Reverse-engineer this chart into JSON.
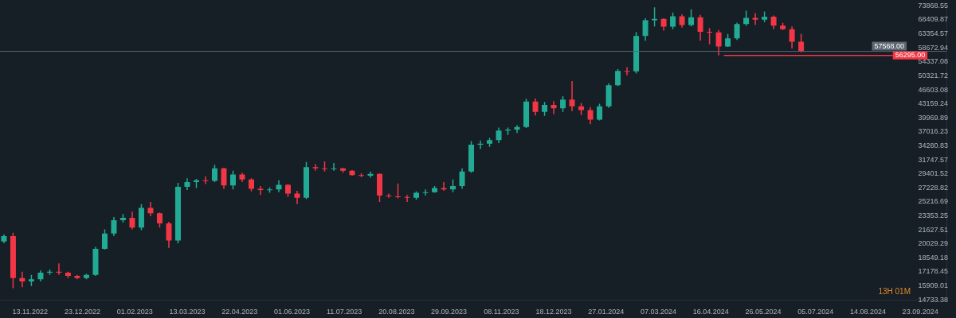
{
  "chart_data": {
    "type": "candlestick",
    "log": true,
    "xlim": [
      "2022-10-21",
      "2024-10-13"
    ],
    "xticks": [
      {
        "value": "2022-11-13",
        "label": "13.11.2022"
      },
      {
        "value": "2022-12-23",
        "label": "23.12.2022"
      },
      {
        "value": "2023-02-01",
        "label": "01.02.2023"
      },
      {
        "value": "2023-03-13",
        "label": "13.03.2023"
      },
      {
        "value": "2023-04-22",
        "label": "22.04.2023"
      },
      {
        "value": "2023-06-01",
        "label": "01.06.2023"
      },
      {
        "value": "2023-07-11",
        "label": "11.07.2023"
      },
      {
        "value": "2023-08-20",
        "label": "20.08.2023"
      },
      {
        "value": "2023-09-29",
        "label": "29.09.2023"
      },
      {
        "value": "2023-11-08",
        "label": "08.11.2023"
      },
      {
        "value": "2023-12-18",
        "label": "18.12.2023"
      },
      {
        "value": "2024-01-27",
        "label": "27.01.2024"
      },
      {
        "value": "2024-03-07",
        "label": "07.03.2024"
      },
      {
        "value": "2024-04-16",
        "label": "16.04.2024"
      },
      {
        "value": "2024-05-26",
        "label": "26.05.2024"
      },
      {
        "value": "2024-07-05",
        "label": "05.07.2024"
      },
      {
        "value": "2024-08-14",
        "label": "14.08.2024"
      },
      {
        "value": "2024-09-23",
        "label": "23.09.2024"
      }
    ],
    "ylim": [
      14733.38,
      73868.55
    ],
    "yticks": [
      14733.38,
      15909.01,
      17178.45,
      18549.18,
      20029.29,
      21627.51,
      23353.25,
      25216.69,
      27228.82,
      29401.52,
      31747.57,
      34280.83,
      37016.23,
      39969.89,
      43159.24,
      46603.08,
      50321.72,
      54337.08,
      58672.94,
      63354.57,
      68409.87,
      73868.55
    ],
    "x": [
      "2022-10-24",
      "2022-10-31",
      "2022-11-07",
      "2022-11-14",
      "2022-11-21",
      "2022-11-28",
      "2022-12-05",
      "2022-12-12",
      "2022-12-19",
      "2022-12-26",
      "2023-01-02",
      "2023-01-09",
      "2023-01-16",
      "2023-01-23",
      "2023-01-30",
      "2023-02-06",
      "2023-02-13",
      "2023-02-20",
      "2023-02-27",
      "2023-03-06",
      "2023-03-13",
      "2023-03-20",
      "2023-03-27",
      "2023-04-03",
      "2023-04-10",
      "2023-04-17",
      "2023-04-24",
      "2023-05-01",
      "2023-05-08",
      "2023-05-15",
      "2023-05-22",
      "2023-05-29",
      "2023-06-05",
      "2023-06-12",
      "2023-06-19",
      "2023-06-26",
      "2023-07-03",
      "2023-07-10",
      "2023-07-17",
      "2023-07-24",
      "2023-07-31",
      "2023-08-07",
      "2023-08-14",
      "2023-08-21",
      "2023-08-28",
      "2023-09-04",
      "2023-09-11",
      "2023-09-18",
      "2023-09-25",
      "2023-10-02",
      "2023-10-09",
      "2023-10-16",
      "2023-10-23",
      "2023-10-30",
      "2023-11-06",
      "2023-11-13",
      "2023-11-20",
      "2023-11-27",
      "2023-12-04",
      "2023-12-11",
      "2023-12-18",
      "2023-12-25",
      "2024-01-01",
      "2024-01-08",
      "2024-01-15",
      "2024-01-22",
      "2024-01-29",
      "2024-02-05",
      "2024-02-12",
      "2024-02-19",
      "2024-02-26",
      "2024-03-04",
      "2024-03-11",
      "2024-03-18",
      "2024-03-25",
      "2024-04-01",
      "2024-04-08",
      "2024-04-15",
      "2024-04-22",
      "2024-04-29",
      "2024-05-06",
      "2024-05-13",
      "2024-05-20",
      "2024-05-27",
      "2024-06-03",
      "2024-06-10",
      "2024-06-17",
      "2024-06-24"
    ],
    "ohlc": [
      [
        20300,
        21100,
        20100,
        20900
      ],
      [
        20900,
        21300,
        15700,
        16600
      ],
      [
        16600,
        17200,
        15800,
        16300
      ],
      [
        16300,
        16900,
        15900,
        16500
      ],
      [
        16500,
        17300,
        16300,
        17100
      ],
      [
        17100,
        17400,
        16900,
        17200
      ],
      [
        17200,
        18000,
        16900,
        17100
      ],
      [
        17100,
        17200,
        16600,
        16800
      ],
      [
        16800,
        16900,
        16500,
        16600
      ],
      [
        16600,
        17000,
        16500,
        16900
      ],
      [
        16900,
        19700,
        16800,
        19500
      ],
      [
        19500,
        21700,
        19400,
        21200
      ],
      [
        21200,
        23200,
        20900,
        22800
      ],
      [
        22800,
        23600,
        22500,
        23100
      ],
      [
        23100,
        23900,
        21700,
        21900
      ],
      [
        21900,
        24900,
        21600,
        24400
      ],
      [
        24400,
        25200,
        23300,
        23700
      ],
      [
        23700,
        23800,
        21900,
        22400
      ],
      [
        22400,
        22600,
        19600,
        20400
      ],
      [
        20400,
        28000,
        20100,
        27400
      ],
      [
        27400,
        28700,
        26900,
        28100
      ],
      [
        28100,
        28600,
        27200,
        28400
      ],
      [
        28400,
        29000,
        27800,
        28300
      ],
      [
        28300,
        30900,
        28100,
        30300
      ],
      [
        30300,
        30400,
        27100,
        27600
      ],
      [
        27600,
        29900,
        27000,
        29300
      ],
      [
        29300,
        29600,
        28100,
        28500
      ],
      [
        28500,
        28700,
        26700,
        27100
      ],
      [
        27100,
        27500,
        26200,
        26900
      ],
      [
        26900,
        27300,
        26500,
        27000
      ],
      [
        27000,
        28400,
        26600,
        27700
      ],
      [
        27700,
        27800,
        25900,
        26400
      ],
      [
        26400,
        26800,
        24900,
        25800
      ],
      [
        25800,
        31400,
        25600,
        30500
      ],
      [
        30500,
        31000,
        29900,
        30300
      ],
      [
        30300,
        31500,
        29800,
        30200
      ],
      [
        30200,
        31200,
        29900,
        30300
      ],
      [
        30300,
        30400,
        29600,
        29900
      ],
      [
        29900,
        30000,
        29100,
        29200
      ],
      [
        29200,
        29500,
        28900,
        29100
      ],
      [
        29100,
        29800,
        28800,
        29400
      ],
      [
        29400,
        29500,
        25200,
        26100
      ],
      [
        26100,
        26400,
        25800,
        26000
      ],
      [
        26000,
        27900,
        25700,
        25900
      ],
      [
        25900,
        26200,
        25200,
        25800
      ],
      [
        25800,
        26700,
        25500,
        26500
      ],
      [
        26500,
        27000,
        26100,
        26600
      ],
      [
        26600,
        27500,
        26500,
        27200
      ],
      [
        27200,
        28100,
        26800,
        27000
      ],
      [
        27000,
        28500,
        26600,
        27500
      ],
      [
        27500,
        30300,
        27100,
        29800
      ],
      [
        29800,
        35200,
        29600,
        34500
      ],
      [
        34500,
        35300,
        33700,
        34700
      ],
      [
        34700,
        35800,
        34100,
        35400
      ],
      [
        35400,
        37900,
        34800,
        37300
      ],
      [
        37300,
        37900,
        36400,
        37500
      ],
      [
        37500,
        38400,
        36800,
        38000
      ],
      [
        38000,
        44400,
        37800,
        43700
      ],
      [
        43700,
        44500,
        40500,
        41300
      ],
      [
        41300,
        43600,
        40400,
        42900
      ],
      [
        42900,
        43800,
        40800,
        42100
      ],
      [
        42100,
        45000,
        41300,
        44200
      ],
      [
        44200,
        48900,
        41500,
        42600
      ],
      [
        42600,
        43400,
        40600,
        41700
      ],
      [
        41700,
        42400,
        38600,
        39600
      ],
      [
        39600,
        43200,
        39400,
        42600
      ],
      [
        42600,
        48300,
        42200,
        47800
      ],
      [
        47800,
        52200,
        47600,
        51700
      ],
      [
        51700,
        52800,
        50500,
        51600
      ],
      [
        51600,
        64000,
        51000,
        62600
      ],
      [
        62600,
        69000,
        61000,
        68300
      ],
      [
        68300,
        73300,
        66000,
        68800
      ],
      [
        68800,
        69000,
        64500,
        65900
      ],
      [
        65900,
        71200,
        65000,
        69800
      ],
      [
        69800,
        70500,
        65600,
        66500
      ],
      [
        66500,
        72500,
        66000,
        69400
      ],
      [
        69400,
        70300,
        61000,
        64100
      ],
      [
        64100,
        65400,
        59800,
        63900
      ],
      [
        63900,
        64700,
        56300,
        59100
      ],
      [
        59100,
        63300,
        59000,
        61800
      ],
      [
        61800,
        67400,
        61300,
        66900
      ],
      [
        66900,
        71900,
        66200,
        69200
      ],
      [
        69200,
        71000,
        66600,
        68500
      ],
      [
        68500,
        71600,
        67500,
        69600
      ],
      [
        69600,
        70100,
        65000,
        66300
      ],
      [
        66300,
        67300,
        64700,
        65000
      ],
      [
        65000,
        66000,
        58500,
        60700
      ],
      [
        60700,
        63400,
        57300,
        57568
      ]
    ],
    "colors": [
      "#22ab94",
      "#f23645",
      "#f23645",
      "#22ab94",
      "#22ab94",
      "#22ab94",
      "#f23645",
      "#f23645",
      "#f23645",
      "#22ab94",
      "#22ab94",
      "#22ab94",
      "#22ab94",
      "#22ab94",
      "#f23645",
      "#22ab94",
      "#f23645",
      "#f23645",
      "#f23645",
      "#22ab94",
      "#22ab94",
      "#22ab94",
      "#f23645",
      "#22ab94",
      "#f23645",
      "#22ab94",
      "#f23645",
      "#f23645",
      "#f23645",
      "#22ab94",
      "#22ab94",
      "#f23645",
      "#f23645",
      "#22ab94",
      "#f23645",
      "#f23645",
      "#22ab94",
      "#f23645",
      "#f23645",
      "#f23645",
      "#22ab94",
      "#f23645",
      "#f23645",
      "#f23645",
      "#f23645",
      "#22ab94",
      "#22ab94",
      "#22ab94",
      "#f23645",
      "#22ab94",
      "#22ab94",
      "#22ab94",
      "#22ab94",
      "#22ab94",
      "#22ab94",
      "#22ab94",
      "#22ab94",
      "#22ab94",
      "#f23645",
      "#22ab94",
      "#f23645",
      "#22ab94",
      "#f23645",
      "#f23645",
      "#f23645",
      "#22ab94",
      "#22ab94",
      "#22ab94",
      "#f23645",
      "#22ab94",
      "#22ab94",
      "#22ab94",
      "#f23645",
      "#22ab94",
      "#f23645",
      "#22ab94",
      "#f23645",
      "#f23645",
      "#f23645",
      "#22ab94",
      "#22ab94",
      "#22ab94",
      "#f23645",
      "#22ab94",
      "#f23645",
      "#f23645",
      "#f23645",
      "#f23645"
    ],
    "series": [
      {
        "type": "line",
        "color": "#f23645",
        "x": [
          "2024-04-26",
          "2024-09-02"
        ],
        "values": [
          56295,
          56295
        ]
      }
    ],
    "ref_lines": [
      {
        "axis": "y",
        "value": 57568.0,
        "label": "57568.00",
        "color": "#5d6673"
      }
    ],
    "annotations": [
      {
        "text": "56295.00",
        "x": "2024-09-02",
        "y": 56295
      },
      "13H 01M"
    ]
  }
}
